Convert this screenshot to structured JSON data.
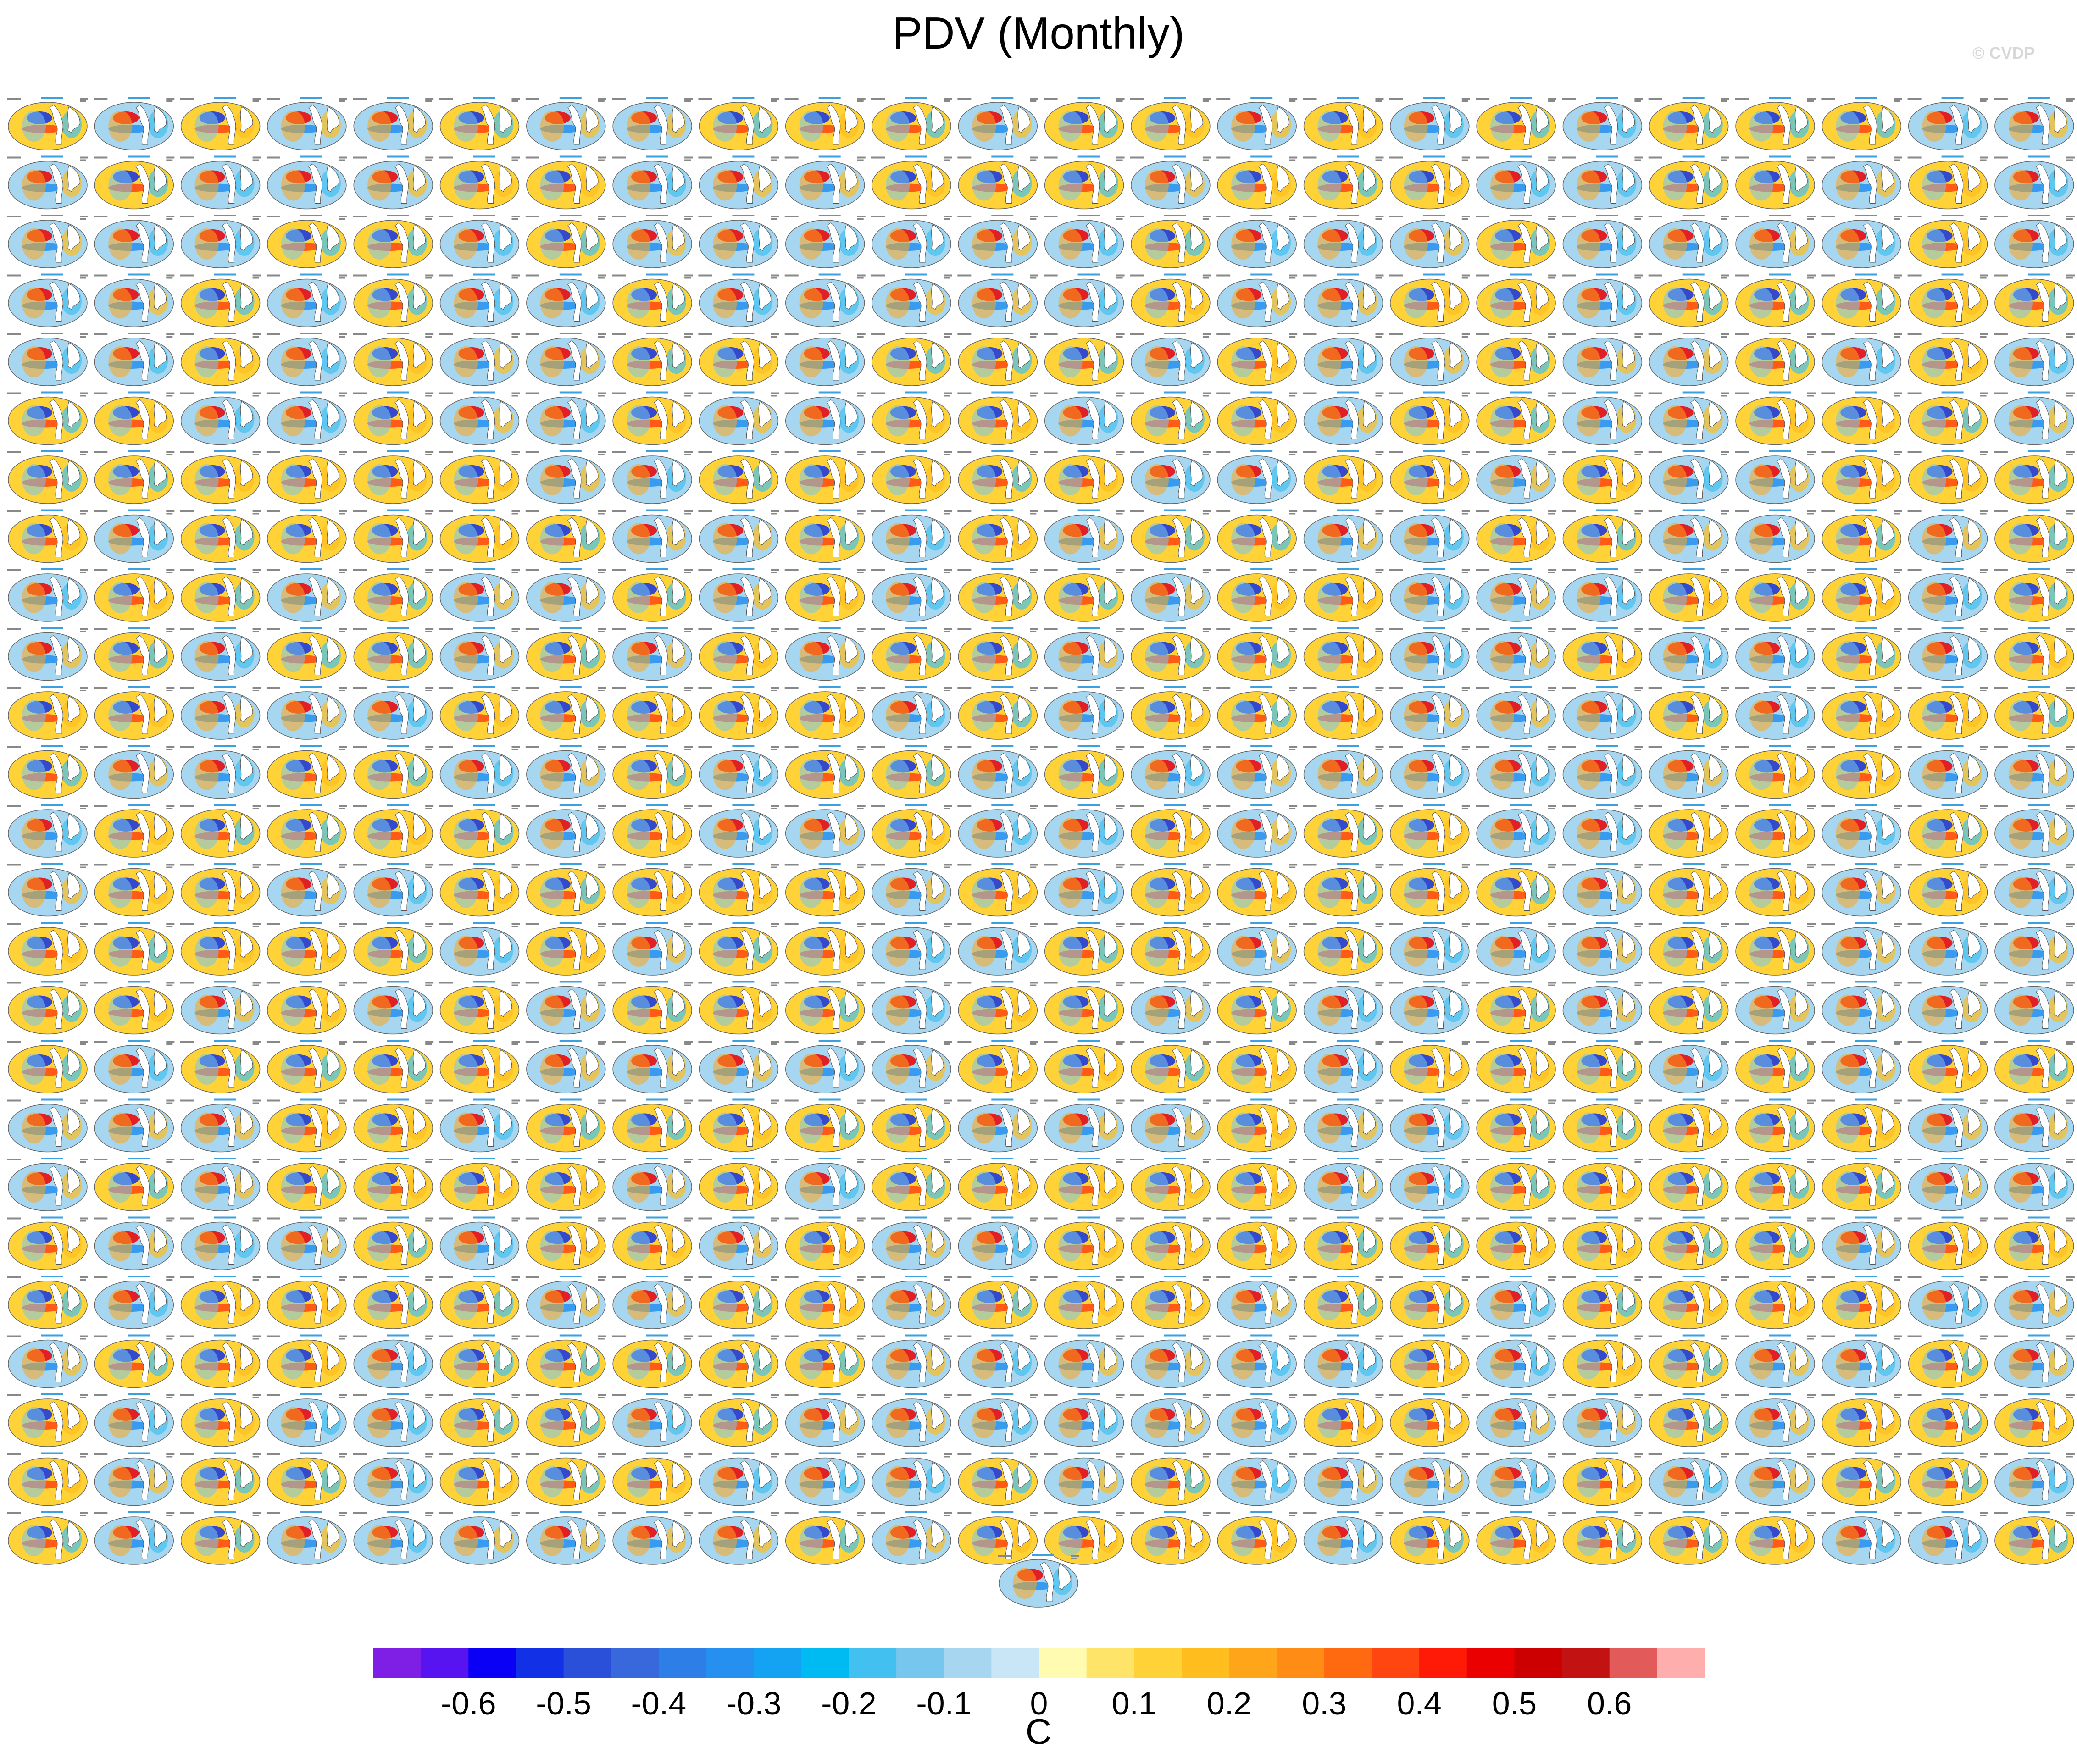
{
  "title": "PDV (Monthly)",
  "copyright": "© CVDP",
  "map_grid": {
    "columns": 24,
    "rows": 25,
    "extra_panels": 1,
    "panel_subtitle_color": "#3aa0e0"
  },
  "colorbar": {
    "units": "C",
    "colors": [
      "#7f1fe6",
      "#5714f0",
      "#0a00f5",
      "#1230e6",
      "#2a4fd9",
      "#3868db",
      "#2e7ee8",
      "#2590f0",
      "#14a2f2",
      "#00baf2",
      "#42c0f0",
      "#76c6ee",
      "#a6d6f0",
      "#c8e6f6",
      "#fffbb0",
      "#ffe46a",
      "#ffd337",
      "#ffbd1e",
      "#ffa51a",
      "#ff8c14",
      "#ff6a10",
      "#ff4510",
      "#ff1a08",
      "#ea0000",
      "#cc0000",
      "#c21212",
      "#e25a5a",
      "#ffaeae"
    ],
    "tick_labels": [
      "-0.6",
      "-0.5",
      "-0.4",
      "-0.3",
      "-0.2",
      "-0.1",
      "0",
      "0.1",
      "0.2",
      "0.3",
      "0.4",
      "0.5",
      "0.6"
    ]
  }
}
